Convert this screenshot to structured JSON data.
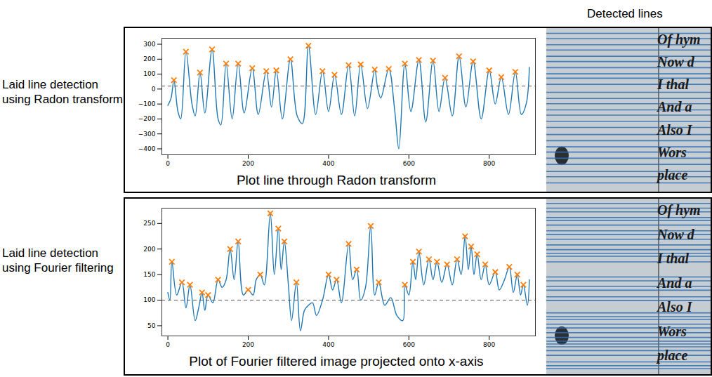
{
  "header": "Detected lines",
  "chart_data": [
    {
      "type": "line",
      "row_label": "Laid line detection using Radon transform",
      "xlabel": "Plot line through Radon transform",
      "xlim": [
        -15,
        915
      ],
      "xticks": [
        0,
        200,
        400,
        600,
        800
      ],
      "ylim": [
        -440,
        340
      ],
      "yticks": [
        -400,
        -300,
        -200,
        -100,
        0,
        100,
        200,
        300
      ],
      "grid": false,
      "series": [
        {
          "type": "line",
          "color": "#1f77b4",
          "x": [
            0,
            8,
            15,
            25,
            32,
            45,
            60,
            68,
            80,
            92,
            110,
            125,
            132,
            145,
            160,
            175,
            190,
            210,
            225,
            245,
            258,
            270,
            285,
            305,
            322,
            335,
            350,
            368,
            385,
            400,
            415,
            432,
            450,
            465,
            480,
            497,
            515,
            522,
            530,
            550,
            565,
            575,
            590,
            605,
            625,
            642,
            660,
            675,
            690,
            708,
            725,
            742,
            760,
            780,
            800,
            815,
            830,
            848,
            865,
            880,
            892,
            900
          ],
          "values": [
            -110,
            -60,
            60,
            -150,
            -200,
            250,
            -100,
            -180,
            110,
            -160,
            265,
            -200,
            -240,
            170,
            -200,
            170,
            -160,
            140,
            -170,
            120,
            -120,
            125,
            -200,
            200,
            -180,
            -230,
            290,
            -170,
            120,
            -150,
            95,
            -170,
            160,
            -180,
            165,
            -130,
            130,
            10,
            -60,
            135,
            -150,
            -400,
            170,
            -150,
            195,
            -220,
            190,
            -150,
            75,
            -180,
            220,
            -120,
            185,
            -200,
            125,
            -100,
            80,
            -170,
            115,
            -170,
            -100,
            145
          ]
        },
        {
          "type": "scatter",
          "marker": "x",
          "color": "#ff7f0e",
          "x": [
            15,
            45,
            80,
            110,
            145,
            175,
            210,
            245,
            270,
            305,
            350,
            385,
            415,
            450,
            480,
            515,
            550,
            590,
            625,
            660,
            690,
            725,
            760,
            800,
            830,
            865
          ],
          "values": [
            60,
            250,
            110,
            265,
            170,
            170,
            140,
            120,
            125,
            200,
            290,
            120,
            95,
            160,
            165,
            130,
            135,
            170,
            195,
            190,
            75,
            220,
            185,
            125,
            80,
            115
          ]
        },
        {
          "type": "rule",
          "line_style": "dashed",
          "color": "#555555",
          "values": [
            20
          ]
        }
      ],
      "image_text": [
        "Of hym",
        "Now d",
        "I thal",
        "And a",
        "Also I",
        "Wors",
        "place"
      ]
    },
    {
      "type": "line",
      "row_label": "Laid line detection using Fourier filtering",
      "xlabel": "Plot of Fourier filtered image projected onto x-axis",
      "xlim": [
        -15,
        915
      ],
      "xticks": [
        0,
        200,
        400,
        600,
        800
      ],
      "ylim": [
        30,
        280
      ],
      "yticks": [
        50,
        100,
        150,
        200,
        250
      ],
      "grid": false,
      "series": [
        {
          "type": "line",
          "color": "#1f77b4",
          "x": [
            0,
            5,
            10,
            22,
            35,
            45,
            55,
            68,
            78,
            85,
            92,
            100,
            112,
            125,
            135,
            145,
            155,
            165,
            175,
            188,
            200,
            212,
            220,
            230,
            240,
            255,
            265,
            275,
            282,
            290,
            300,
            308,
            320,
            330,
            340,
            350,
            360,
            370,
            385,
            400,
            410,
            420,
            432,
            450,
            460,
            470,
            480,
            492,
            505,
            515,
            525,
            540,
            555,
            570,
            585,
            590,
            600,
            610,
            617,
            625,
            637,
            650,
            660,
            670,
            682,
            695,
            708,
            720,
            730,
            740,
            748,
            755,
            762,
            770,
            780,
            790,
            800,
            815,
            825,
            838,
            850,
            860,
            870,
            878,
            885,
            895,
            900
          ],
          "values": [
            115,
            100,
            175,
            110,
            135,
            85,
            130,
            60,
            90,
            115,
            80,
            110,
            95,
            140,
            125,
            140,
            200,
            140,
            215,
            110,
            120,
            110,
            140,
            150,
            130,
            270,
            150,
            240,
            160,
            215,
            130,
            60,
            135,
            40,
            80,
            90,
            95,
            70,
            100,
            150,
            120,
            140,
            95,
            210,
            140,
            160,
            100,
            125,
            245,
            110,
            135,
            90,
            105,
            70,
            60,
            130,
            110,
            175,
            140,
            195,
            130,
            180,
            140,
            175,
            135,
            170,
            130,
            180,
            150,
            225,
            160,
            205,
            150,
            190,
            140,
            170,
            130,
            155,
            120,
            140,
            165,
            115,
            150,
            110,
            130,
            90,
            140
          ]
        },
        {
          "type": "scatter",
          "marker": "x",
          "color": "#ff7f0e",
          "x": [
            10,
            35,
            55,
            85,
            100,
            125,
            155,
            175,
            200,
            230,
            255,
            275,
            290,
            320,
            400,
            420,
            450,
            470,
            505,
            525,
            590,
            610,
            625,
            650,
            670,
            695,
            720,
            740,
            755,
            770,
            790,
            815,
            850,
            870,
            885
          ],
          "values": [
            175,
            135,
            130,
            115,
            110,
            140,
            200,
            215,
            120,
            150,
            270,
            240,
            215,
            135,
            150,
            140,
            210,
            160,
            245,
            135,
            130,
            175,
            195,
            180,
            175,
            170,
            180,
            225,
            205,
            190,
            170,
            155,
            165,
            150,
            130
          ]
        },
        {
          "type": "rule",
          "line_style": "dashed",
          "color": "#555555",
          "values": [
            100
          ]
        }
      ],
      "image_text": [
        "Of hym",
        "Now d",
        "I thal",
        "And a",
        "Also I",
        "Wors",
        "place"
      ]
    }
  ]
}
